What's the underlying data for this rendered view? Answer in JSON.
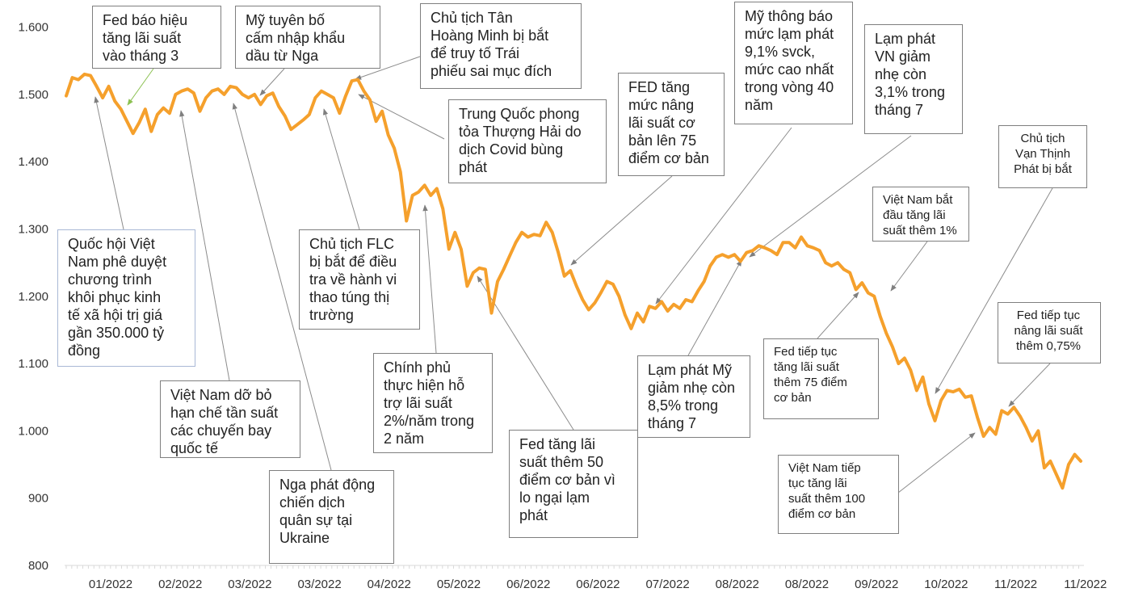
{
  "chart_data": {
    "type": "line",
    "title": "",
    "xlabel": "",
    "ylabel": "",
    "ylim": [
      800,
      1600
    ],
    "y_ticks": [
      "800",
      "900",
      "1.000",
      "1.100",
      "1.200",
      "1.300",
      "1.400",
      "1.500",
      "1.600"
    ],
    "x_tick_labels": [
      "01/2022",
      "02/2022",
      "03/2022",
      "03/2022",
      "04/2022",
      "05/2022",
      "06/2022",
      "06/2022",
      "07/2022",
      "08/2022",
      "08/2022",
      "09/2022",
      "10/2022",
      "11/2022",
      "11/2022"
    ],
    "grid": false,
    "line_color": "#f5a02c",
    "series": [
      {
        "name": "",
        "values": [
          1498,
          1525,
          1522,
          1530,
          1528,
          1512,
          1495,
          1512,
          1490,
          1478,
          1460,
          1442,
          1458,
          1478,
          1445,
          1470,
          1480,
          1472,
          1500,
          1505,
          1508,
          1502,
          1475,
          1495,
          1505,
          1508,
          1500,
          1512,
          1510,
          1500,
          1495,
          1500,
          1485,
          1498,
          1502,
          1482,
          1468,
          1448,
          1455,
          1462,
          1470,
          1495,
          1505,
          1500,
          1495,
          1472,
          1498,
          1520,
          1522,
          1505,
          1492,
          1460,
          1475,
          1440,
          1420,
          1385,
          1312,
          1350,
          1355,
          1365,
          1350,
          1360,
          1330,
          1270,
          1295,
          1270,
          1215,
          1235,
          1242,
          1240,
          1175,
          1222,
          1240,
          1260,
          1280,
          1295,
          1288,
          1292,
          1290,
          1310,
          1295,
          1265,
          1230,
          1238,
          1215,
          1195,
          1180,
          1190,
          1205,
          1222,
          1218,
          1200,
          1172,
          1152,
          1175,
          1162,
          1185,
          1182,
          1192,
          1178,
          1188,
          1182,
          1195,
          1192,
          1208,
          1222,
          1245,
          1258,
          1262,
          1258,
          1262,
          1252,
          1265,
          1268,
          1275,
          1272,
          1268,
          1262,
          1280,
          1280,
          1272,
          1288,
          1275,
          1272,
          1268,
          1250,
          1245,
          1250,
          1240,
          1235,
          1210,
          1220,
          1205,
          1200,
          1170,
          1145,
          1125,
          1100,
          1108,
          1090,
          1060,
          1080,
          1040,
          1015,
          1045,
          1060,
          1058,
          1062,
          1050,
          1052,
          1020,
          992,
          1005,
          995,
          1030,
          1025,
          1035,
          1022,
          1005,
          985,
          1000,
          945,
          955,
          935,
          915,
          950,
          965,
          955
        ]
      }
    ],
    "annotations": [
      {
        "text": "Fed báo hiệu\ntăng lãi suất\nvào tháng 3"
      },
      {
        "text": "Mỹ tuyên bố\ncấm nhập khẩu\ndầu từ Nga"
      },
      {
        "text": "Chủ tịch Tân\nHoàng Minh bị bắt\nđể truy tố Trái\nphiếu sai mục đích"
      },
      {
        "text": "Mỹ thông báo\nmức lạm phát\n9,1% svck,\nmức cao nhất\ntrong vòng 40\nnăm"
      },
      {
        "text": "Lạm phát\nVN giảm\nnhẹ còn\n3,1% trong\ntháng 7"
      },
      {
        "text": "FED tăng\nmức nâng\nlãi suất cơ\nbản lên 75\nđiểm cơ bản"
      },
      {
        "text": "Trung Quốc phong\ntỏa Thượng Hải do\ndịch Covid bùng\nphát"
      },
      {
        "text": "Chủ tịch\nVạn Thịnh\nPhát bị bắt"
      },
      {
        "text": "Việt Nam bắt\nđầu tăng lãi\nsuất thêm 1%"
      },
      {
        "text": "Quốc hội Việt\nNam phê duyệt\nchương trình\nkhôi phục kinh\ntế xã hội trị giá\ngần 350.000 tỷ\nđồng"
      },
      {
        "text": "Chủ tịch FLC\nbị bắt để điều\ntra về hành vi\nthao túng thị\ntrường"
      },
      {
        "text": "Chính phủ\nthực hiện hỗ\ntrợ lãi suất\n2%/năm trong\n2 năm"
      },
      {
        "text": "Việt Nam dỡ bỏ\nhạn chế tần suất\ncác chuyến bay\nquốc tế"
      },
      {
        "text": "Nga phát động\nchiến dịch\nquân sự tại\nUkraine"
      },
      {
        "text": "Fed tăng lãi\nsuất thêm 50\nđiểm cơ bản vì\nlo ngại lạm\nphát"
      },
      {
        "text": "Lạm phát Mỹ\ngiảm nhẹ còn\n8,5% trong\ntháng 7"
      },
      {
        "text": "Fed tiếp tục\ntăng lãi suất\nthêm 75 điểm\ncơ bản"
      },
      {
        "text": "Fed tiếp tục\nnâng lãi suất\nthêm 0,75%"
      },
      {
        "text": "Việt Nam tiếp\ntục tăng lãi\nsuất thêm 100\nđiểm cơ bản"
      }
    ]
  }
}
